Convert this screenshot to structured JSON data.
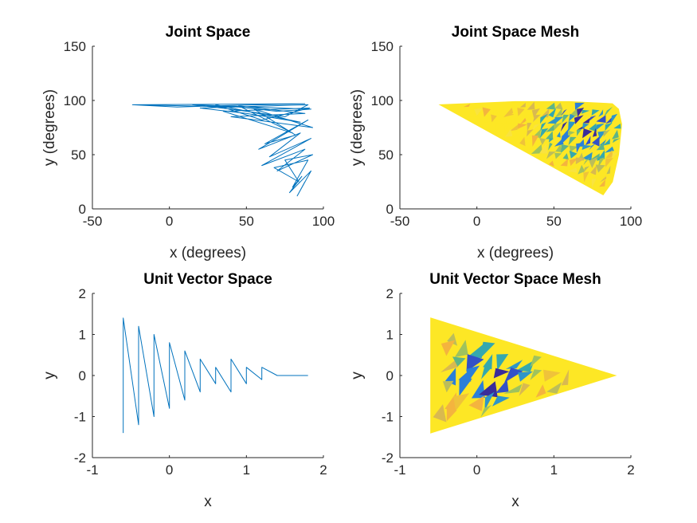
{
  "chart_data": [
    {
      "id": "joint-space",
      "type": "line",
      "title": "Joint Space",
      "xlabel": "x (degrees)",
      "ylabel": "y (degrees)",
      "xlim": [
        -50,
        100
      ],
      "ylim": [
        0,
        150
      ],
      "xticks": [
        -50,
        0,
        50,
        100
      ],
      "yticks": [
        0,
        50,
        100,
        150
      ],
      "grid": false,
      "color": "#0072BD",
      "series": [
        {
          "x": [
            -24,
            5,
            30,
            60,
            88,
            -24,
            10,
            45,
            70,
            92,
            15,
            40,
            75,
            90,
            20,
            50,
            85,
            30,
            60,
            91,
            35,
            80,
            45,
            88,
            40,
            93,
            55,
            82,
            62,
            90,
            58,
            85,
            65,
            92,
            60,
            88,
            70,
            93,
            75,
            84,
            68,
            90,
            80,
            86,
            78,
            92,
            83,
            88
          ],
          "y": [
            96,
            94,
            95,
            96,
            97,
            96,
            95,
            94,
            90,
            92,
            96,
            92,
            85,
            96,
            93,
            88,
            80,
            96,
            82,
            93,
            90,
            70,
            95,
            88,
            85,
            75,
            92,
            68,
            60,
            82,
            55,
            70,
            48,
            65,
            40,
            55,
            35,
            50,
            45,
            25,
            38,
            45,
            20,
            30,
            15,
            35,
            12,
            25
          ]
        }
      ]
    },
    {
      "id": "joint-space-mesh",
      "type": "heatmap",
      "title": "Joint Space Mesh",
      "xlabel": "x (degrees)",
      "ylabel": "y (degrees)",
      "xlim": [
        -50,
        100
      ],
      "ylim": [
        0,
        150
      ],
      "xticks": [
        -50,
        0,
        50,
        100
      ],
      "yticks": [
        0,
        50,
        100,
        150
      ],
      "grid": false,
      "outline": {
        "x": [
          -24,
          25,
          60,
          88,
          92,
          94,
          92,
          88,
          82
        ],
        "y": [
          96,
          99,
          99,
          97,
          92,
          78,
          50,
          25,
          13
        ]
      },
      "palette": [
        "#FDE725",
        "#F9E33F",
        "#EFC33A",
        "#F4B43E",
        "#D9B950",
        "#BCBD5A",
        "#9FC25E",
        "#5EB487",
        "#35A8AE",
        "#2E95C8",
        "#2A7FD9",
        "#3351C7",
        "#3A2C9A"
      ]
    },
    {
      "id": "unit-vector-space",
      "type": "line",
      "title": "Unit Vector Space",
      "xlabel": "x",
      "ylabel": "y",
      "xlim": [
        -1,
        2
      ],
      "ylim": [
        -2,
        2
      ],
      "xticks": [
        -1,
        0,
        1,
        2
      ],
      "yticks": [
        -2,
        -1,
        0,
        1,
        2
      ],
      "grid": false,
      "color": "#0072BD",
      "series": [
        {
          "x": [
            -0.6,
            -0.6,
            -0.4,
            -0.4,
            -0.2,
            -0.2,
            0,
            0,
            0.2,
            0.2,
            0.4,
            0.4,
            0.6,
            0.6,
            0.8,
            0.8,
            1.0,
            1.0,
            1.2,
            1.2,
            1.4,
            1.8
          ],
          "y": [
            -1.4,
            1.4,
            -1.2,
            1.2,
            -1.0,
            1.0,
            -0.8,
            0.8,
            -0.6,
            0.6,
            -0.4,
            0.4,
            -0.2,
            0.2,
            -0.4,
            0.4,
            -0.2,
            0.2,
            -0.1,
            0.2,
            0,
            0
          ]
        }
      ]
    },
    {
      "id": "unit-vector-space-mesh",
      "type": "heatmap",
      "title": "Unit Vector Space Mesh",
      "xlabel": "x",
      "ylabel": "y",
      "xlim": [
        -1,
        2
      ],
      "ylim": [
        -2,
        2
      ],
      "xticks": [
        -1,
        0,
        1,
        2
      ],
      "yticks": [
        -2,
        -1,
        0,
        1,
        2
      ],
      "grid": false,
      "outline": {
        "x": [
          -0.6,
          1.8,
          -0.6
        ],
        "y": [
          1.4,
          0,
          -1.4
        ]
      },
      "palette": [
        "#FDE725",
        "#F9E33F",
        "#EFC33A",
        "#F4B43E",
        "#D9B950",
        "#BCBD5A",
        "#9FC25E",
        "#5EB487",
        "#35A8AE",
        "#2E95C8",
        "#2A7FD9",
        "#3351C7",
        "#3A2C9A"
      ]
    }
  ]
}
